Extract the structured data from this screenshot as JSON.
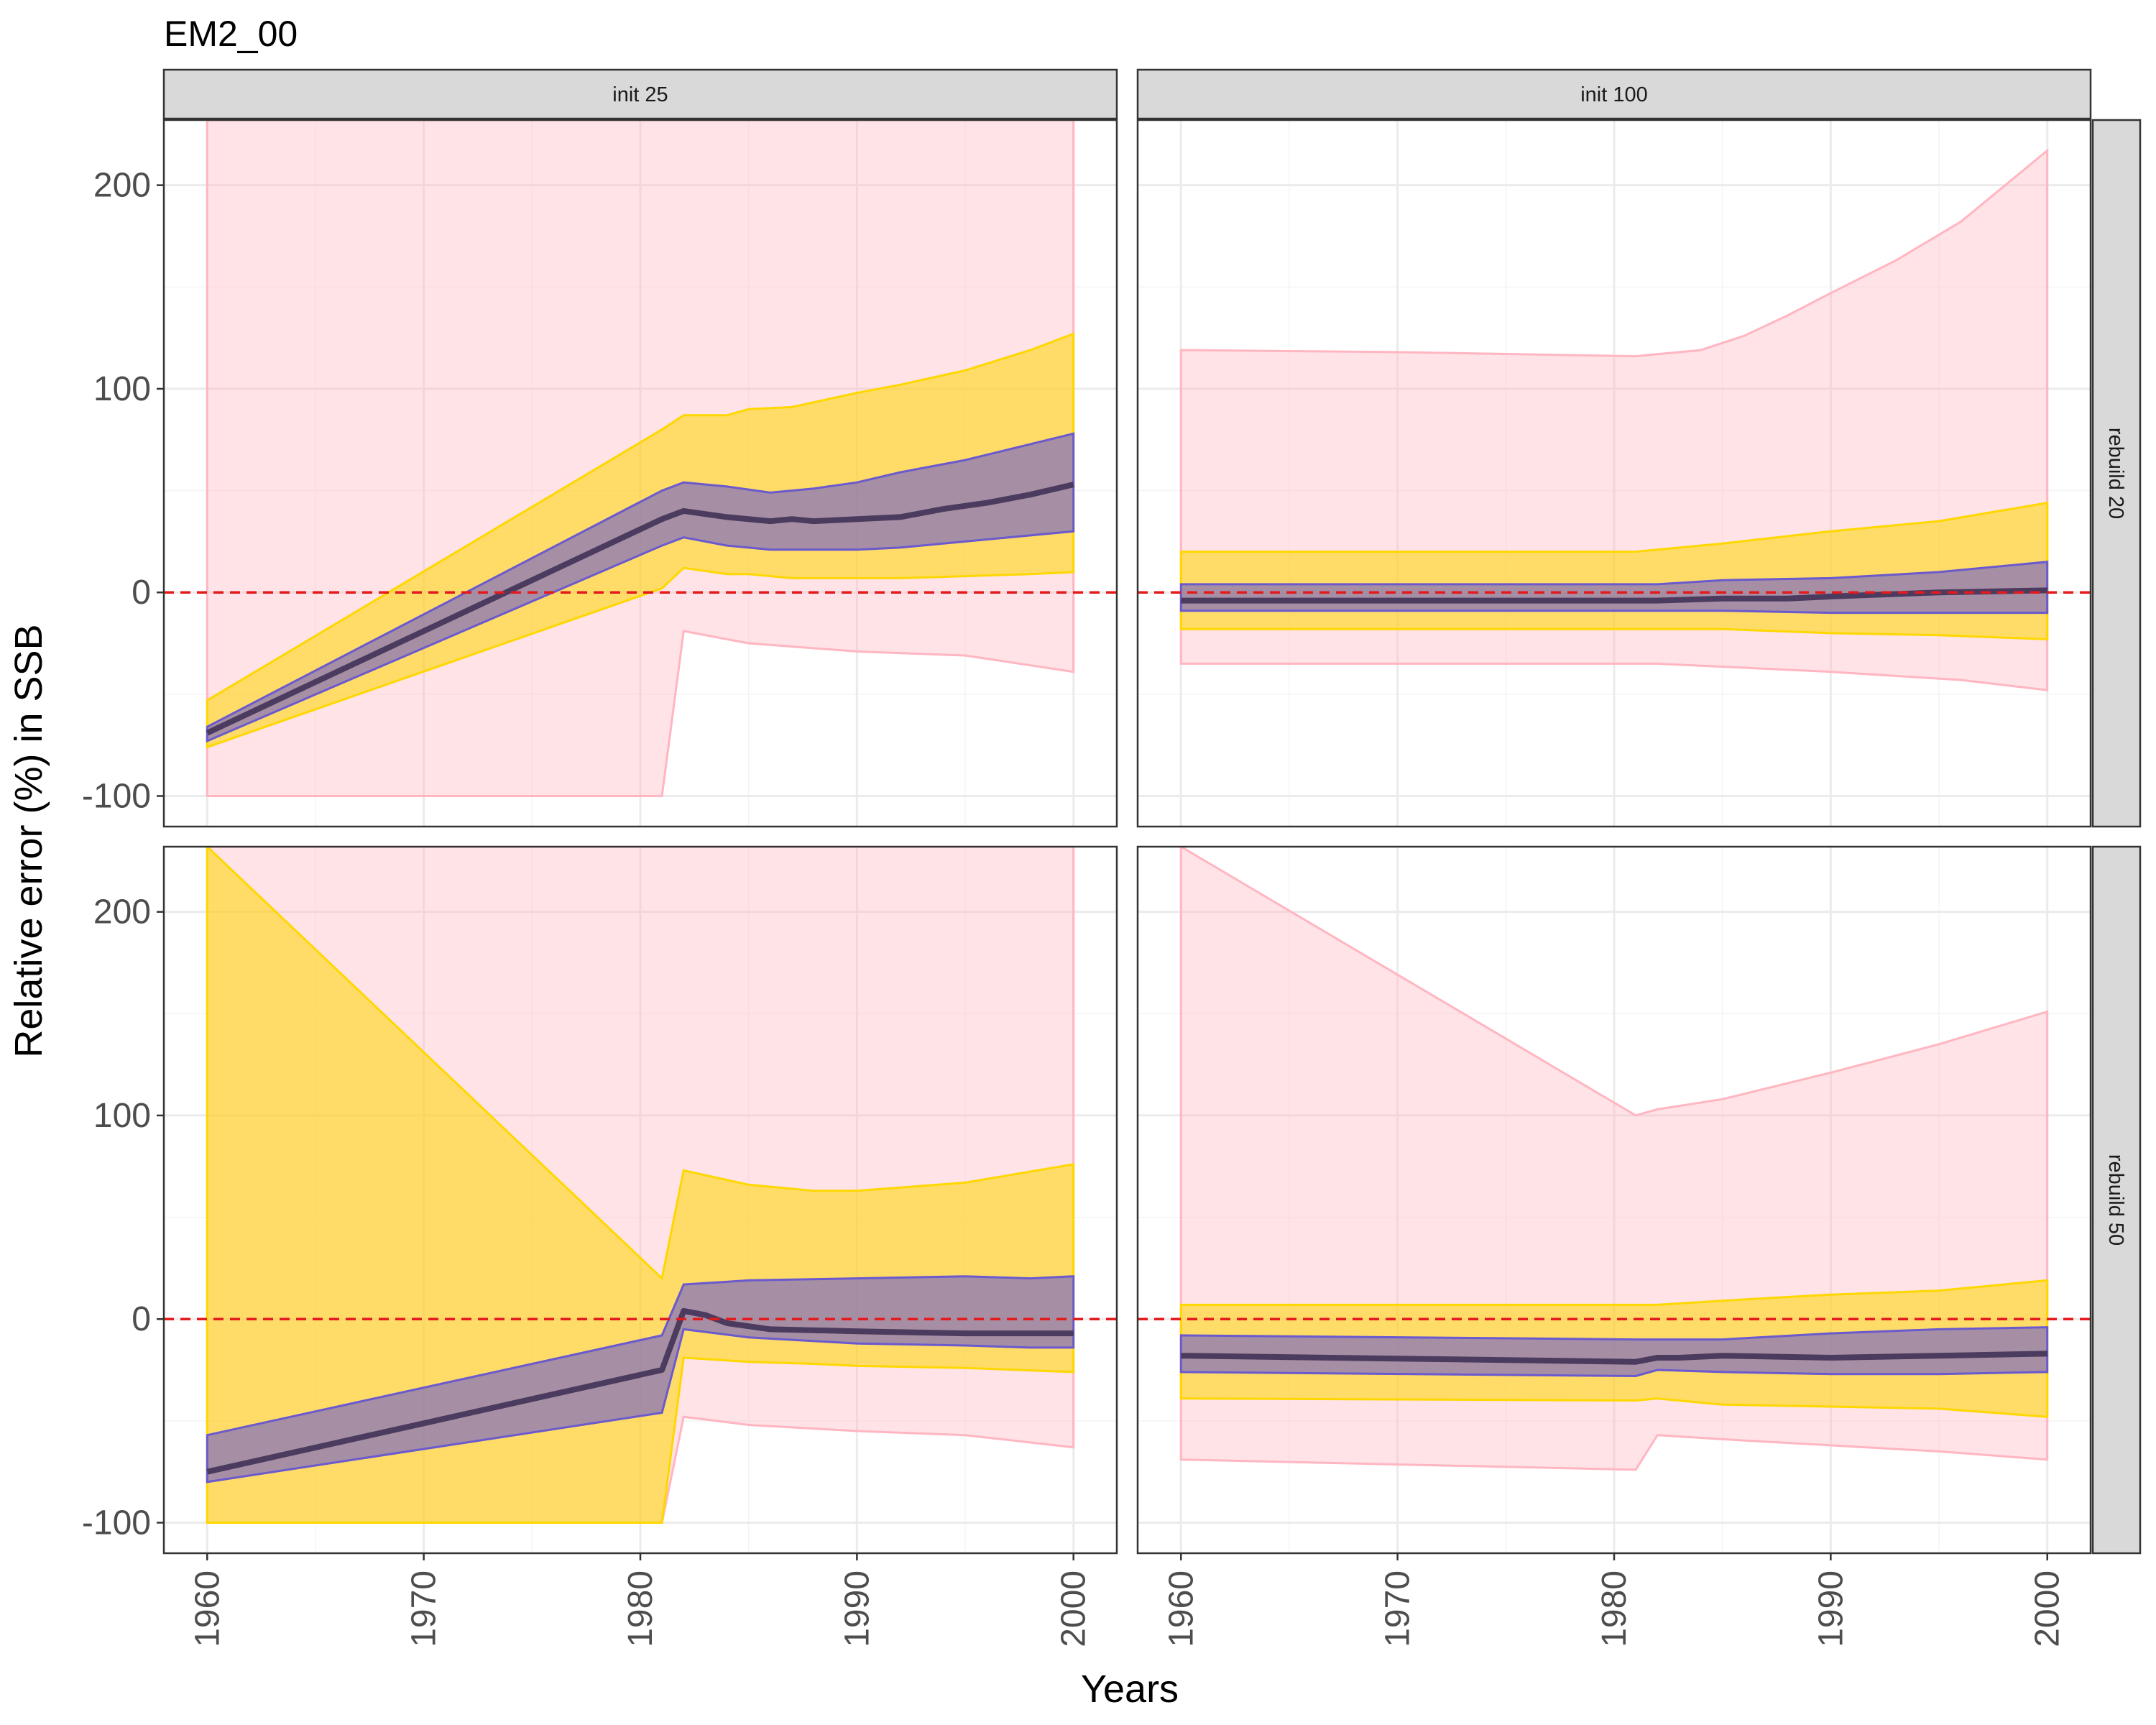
{
  "colors": {
    "outer_band": "#FFB6C1",
    "middle_band": "#FFD700",
    "inner_band": "#6A5ACD",
    "median": "#4B3B5E",
    "reference_line": "#E41A1C",
    "strip_fill": "#D9D9D9",
    "grid_major": "#EBEBEB",
    "panel_border": "#333333"
  },
  "chart_data": {
    "type": "area",
    "title": "EM2_00",
    "xlabel": "Years",
    "ylabel": "Relative error (%) in SSB",
    "xlim": [
      1958,
      2002
    ],
    "ylim": [
      -115,
      232
    ],
    "x_ticks": [
      1960,
      1970,
      1980,
      1990,
      2000
    ],
    "y_ticks": [
      -100,
      0,
      100,
      200
    ],
    "x_tick_labels": [
      "1960",
      "1970",
      "1980",
      "1990",
      "2000"
    ],
    "y_tick_labels": [
      "-100",
      "0",
      "100",
      "200"
    ],
    "column_facets": [
      "init 25",
      "init 100"
    ],
    "row_facets": [
      "rebuild 20",
      "rebuild 50"
    ],
    "reference_y": 0,
    "grid": true,
    "panels": [
      {
        "col": "init 25",
        "row": "rebuild 20",
        "outer": {
          "x": [
            1960,
            1981,
            1982,
            1985,
            1990,
            1995,
            2000
          ],
          "low": [
            -100,
            -100,
            -19,
            -25,
            -29,
            -31,
            -39
          ],
          "high": [
            232,
            232,
            232,
            232,
            232,
            232,
            232
          ]
        },
        "middle": {
          "x": [
            1960,
            1981,
            1982,
            1984,
            1985,
            1987,
            1990,
            1992,
            1995,
            1998,
            2000
          ],
          "low": [
            -76,
            2,
            12,
            9,
            9,
            7,
            7,
            7,
            8,
            9,
            10
          ],
          "high": [
            -53,
            80,
            87,
            87,
            90,
            91,
            98,
            102,
            109,
            119,
            127
          ]
        },
        "inner": {
          "x": [
            1960,
            1981,
            1982,
            1984,
            1986,
            1988,
            1990,
            1992,
            1995,
            2000
          ],
          "low": [
            -73,
            23,
            27,
            23,
            21,
            21,
            21,
            22,
            25,
            30
          ],
          "high": [
            -66,
            50,
            54,
            52,
            49,
            51,
            54,
            59,
            65,
            78
          ]
        },
        "median": {
          "x": [
            1960,
            1981,
            1982,
            1984,
            1986,
            1987,
            1988,
            1990,
            1992,
            1994,
            1996,
            1998,
            2000
          ],
          "y": [
            -69,
            36,
            40,
            37,
            35,
            36,
            35,
            36,
            37,
            41,
            44,
            48,
            53
          ]
        }
      },
      {
        "col": "init 100",
        "row": "rebuild 20",
        "outer": {
          "x": [
            1960,
            1970,
            1981,
            1982,
            1984,
            1986,
            1988,
            1990,
            1993,
            1996,
            2000
          ],
          "low": [
            -35,
            -35,
            -35,
            -35,
            -36,
            -37,
            -38,
            -39,
            -41,
            -43,
            -48
          ],
          "high": [
            119,
            118,
            116,
            117,
            119,
            126,
            136,
            147,
            163,
            182,
            217
          ]
        },
        "middle": {
          "x": [
            1960,
            1981,
            1982,
            1985,
            1990,
            1995,
            2000
          ],
          "low": [
            -18,
            -18,
            -18,
            -18,
            -20,
            -21,
            -23
          ],
          "high": [
            20,
            20,
            21,
            24,
            30,
            35,
            44
          ]
        },
        "inner": {
          "x": [
            1960,
            1981,
            1982,
            1985,
            1990,
            1995,
            2000
          ],
          "low": [
            -9,
            -9,
            -9,
            -9,
            -10,
            -10,
            -10
          ],
          "high": [
            4,
            4,
            4,
            6,
            7,
            10,
            15
          ]
        },
        "median": {
          "x": [
            1960,
            1981,
            1982,
            1985,
            1988,
            1990,
            1995,
            2000
          ],
          "y": [
            -4,
            -4,
            -4,
            -3,
            -3,
            -2,
            0,
            1
          ]
        }
      },
      {
        "col": "init 25",
        "row": "rebuild 50",
        "outer": {
          "x": [
            1960,
            1981,
            1982,
            1985,
            1990,
            1995,
            2000
          ],
          "low": [
            -100,
            -100,
            -48,
            -52,
            -55,
            -57,
            -63
          ],
          "high": [
            232,
            232,
            232,
            232,
            232,
            232,
            232
          ]
        },
        "middle": {
          "x": [
            1960,
            1981,
            1982,
            1985,
            1988,
            1990,
            1995,
            2000
          ],
          "low": [
            -100,
            -100,
            -19,
            -21,
            -22,
            -23,
            -24,
            -26
          ],
          "high": [
            232,
            20,
            73,
            66,
            63,
            63,
            67,
            76
          ]
        },
        "inner": {
          "x": [
            1960,
            1981,
            1982,
            1985,
            1990,
            1995,
            1998,
            2000
          ],
          "low": [
            -80,
            -46,
            -5,
            -9,
            -12,
            -13,
            -14,
            -14
          ],
          "high": [
            -57,
            -8,
            17,
            19,
            20,
            21,
            20,
            21
          ]
        },
        "median": {
          "x": [
            1960,
            1981,
            1982,
            1983,
            1984,
            1986,
            1990,
            1995,
            2000
          ],
          "y": [
            -75,
            -25,
            4,
            2,
            -2,
            -5,
            -6,
            -7,
            -7
          ]
        }
      },
      {
        "col": "init 100",
        "row": "rebuild 50",
        "outer": {
          "x": [
            1960,
            1981,
            1982,
            1985,
            1990,
            1995,
            2000
          ],
          "low": [
            -69,
            -74,
            -57,
            -59,
            -62,
            -65,
            -69
          ],
          "high": [
            232,
            100,
            103,
            108,
            121,
            135,
            151
          ]
        },
        "middle": {
          "x": [
            1960,
            1981,
            1982,
            1985,
            1990,
            1995,
            2000
          ],
          "low": [
            -39,
            -40,
            -39,
            -42,
            -43,
            -44,
            -48
          ],
          "high": [
            7,
            7,
            7,
            9,
            12,
            14,
            19
          ]
        },
        "inner": {
          "x": [
            1960,
            1981,
            1982,
            1985,
            1990,
            1995,
            2000
          ],
          "low": [
            -26,
            -28,
            -25,
            -26,
            -27,
            -27,
            -26
          ],
          "high": [
            -8,
            -10,
            -10,
            -10,
            -7,
            -5,
            -4
          ]
        },
        "median": {
          "x": [
            1960,
            1981,
            1982,
            1983,
            1985,
            1990,
            1995,
            2000
          ],
          "y": [
            -18,
            -21,
            -19,
            -19,
            -18,
            -19,
            -18,
            -17
          ]
        }
      }
    ]
  }
}
